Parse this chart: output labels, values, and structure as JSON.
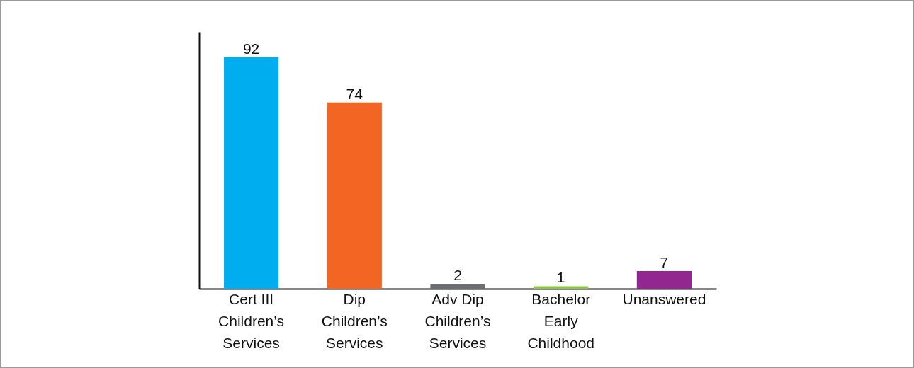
{
  "chart_data": {
    "type": "bar",
    "categories": [
      "Cert III\nChildren’s\nServices",
      "Dip\nChildren’s\nServices",
      "Adv Dip\nChildren’s\nServices",
      "Bachelor\nEarly\nChildhood",
      "Unanswered"
    ],
    "values": [
      92,
      74,
      2,
      1,
      7
    ],
    "colors": [
      "#00aeef",
      "#f26522",
      "#6d6e71",
      "#8dc63f",
      "#92278f"
    ],
    "ylim": [
      0,
      102
    ],
    "data_labels": true,
    "tick_labels": "x",
    "grid": false
  }
}
